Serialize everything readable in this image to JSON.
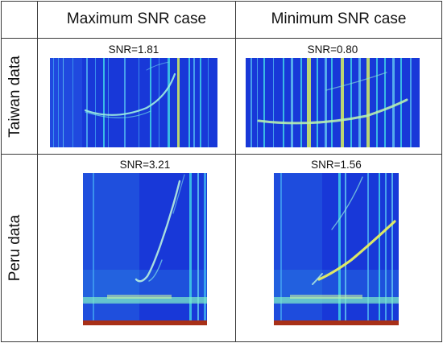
{
  "columns": {
    "max": "Maximum SNR case",
    "min": "Minimum SNR case"
  },
  "rows": {
    "taiwan": "Taiwan data",
    "peru": "Peru data"
  },
  "cells": {
    "taiwan_max_snr": "SNR=1.81",
    "taiwan_min_snr": "SNR=0.80",
    "peru_max_snr": "SNR=3.21",
    "peru_min_snr": "SNR=1.56"
  },
  "colors": {
    "background_blue": "#1838d8",
    "stripe_cyan": "#3fd0e8",
    "stripe_yellow": "#d8f060",
    "bottom_band": "#a83018"
  }
}
